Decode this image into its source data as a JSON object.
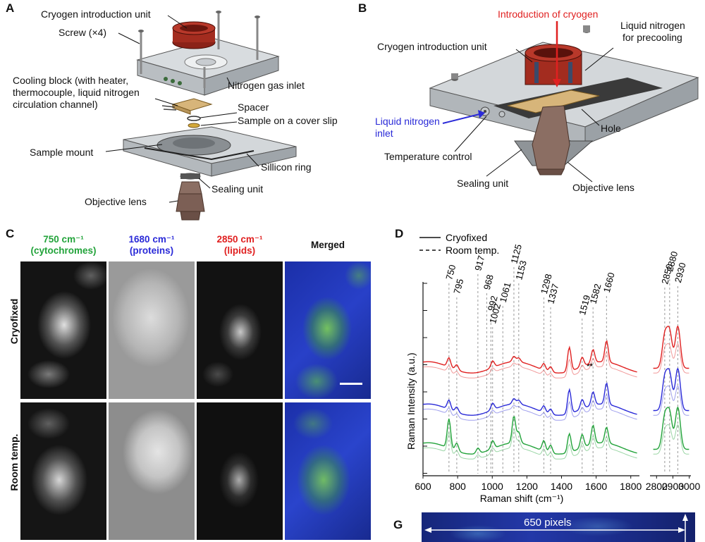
{
  "panels": [
    "A",
    "B",
    "C",
    "D",
    "G"
  ],
  "panel_a": {
    "labels": {
      "cryogen_unit": "Cryogen introduction unit",
      "screw": "Screw (×4)",
      "nitrogen_inlet": "Nitrogen gas inlet",
      "cooling_line1": "Cooling block (with heater,",
      "cooling_line2": "thermocouple, liquid nitrogen",
      "cooling_line3": "circulation channel)",
      "spacer": "Spacer",
      "sample_cover": "Sample on a cover slip",
      "sample_mount": "Sample mount",
      "silicon_ring": "Sillicon ring",
      "sealing_unit": "Sealing unit",
      "objective_lens": "Objective lens"
    }
  },
  "panel_b": {
    "labels": {
      "intro_cryogen": "Introduction of cryogen",
      "cryogen_unit": "Cryogen introduction unit",
      "ln_precool1": "Liquid nitrogen",
      "ln_precool2": "for precooling",
      "ln_inlet1": "Liquid nitrogen",
      "ln_inlet2": "inlet",
      "temp_control": "Temperature control",
      "hole": "Hole",
      "sealing_unit": "Sealing unit",
      "objective_lens": "Objective lens"
    }
  },
  "panel_c": {
    "headers": [
      {
        "line1": "750 cm⁻¹",
        "line2": "(cytochromes)",
        "color": "#22a33a"
      },
      {
        "line1": "1680 cm⁻¹",
        "line2": "(proteins)",
        "color": "#2a2ad8"
      },
      {
        "line1": "2850 cm⁻¹",
        "line2": "(lipids)",
        "color": "#e02020"
      },
      {
        "line1": "Merged",
        "line2": "",
        "color": "#111111"
      }
    ],
    "rows": [
      "Cryofixed",
      "Room temp."
    ]
  },
  "chart_data": {
    "type": "line",
    "xlabel": "Raman shift (cm⁻¹)",
    "ylabel": "Raman Intensity (a.u.)",
    "legend": [
      {
        "name": "Cryofixed",
        "style": "solid"
      },
      {
        "name": "Room temp.",
        "style": "dashed"
      }
    ],
    "x_ticks_left": [
      "600",
      "800",
      "1000",
      "1200",
      "1400",
      "1600",
      "1800"
    ],
    "x_ticks_right": [
      "2800",
      "2900",
      "3000"
    ],
    "xlim_left": [
      600,
      1850
    ],
    "xlim_right": [
      2760,
      3010
    ],
    "peak_labels": [
      {
        "x": 750,
        "label": "750"
      },
      {
        "x": 795,
        "label": "795"
      },
      {
        "x": 917,
        "label": "917"
      },
      {
        "x": 968,
        "label": "968"
      },
      {
        "x": 992,
        "label": "992"
      },
      {
        "x": 1002,
        "label": "1002"
      },
      {
        "x": 1061,
        "label": "1061"
      },
      {
        "x": 1125,
        "label": "1125"
      },
      {
        "x": 1153,
        "label": "1153"
      },
      {
        "x": 1298,
        "label": "1298"
      },
      {
        "x": 1337,
        "label": "1337"
      },
      {
        "x": 1519,
        "label": "1519"
      },
      {
        "x": 1582,
        "label": "1582"
      },
      {
        "x": 1660,
        "label": "1660"
      },
      {
        "x": 2850,
        "label": "2850"
      },
      {
        "x": 2880,
        "label": "2880"
      },
      {
        "x": 2930,
        "label": "2930"
      }
    ],
    "series_colors": [
      "#e02020",
      "#2a2ad8",
      "#22a33a"
    ]
  },
  "panel_g": {
    "label": "650 pixels"
  }
}
